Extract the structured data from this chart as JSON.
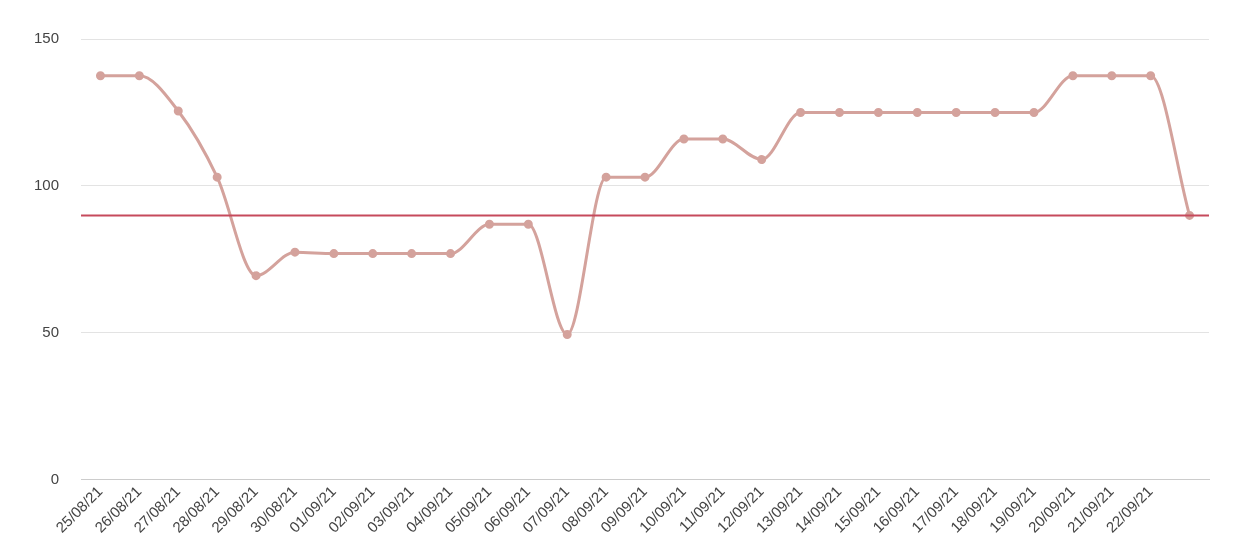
{
  "chart_data": {
    "type": "line",
    "categories": [
      "25/08/21",
      "26/08/21",
      "27/08/21",
      "28/08/21",
      "29/08/21",
      "30/08/21",
      "01/09/21",
      "02/09/21",
      "03/09/21",
      "04/09/21",
      "05/09/21",
      "06/09/21",
      "07/09/21",
      "08/09/21",
      "09/09/21",
      "10/09/21",
      "11/09/21",
      "12/09/21",
      "13/09/21",
      "14/09/21",
      "15/09/21",
      "16/09/21",
      "17/09/21",
      "18/09/21",
      "19/09/21",
      "20/09/21",
      "21/09/21",
      "22/09/21",
      null
    ],
    "series": [
      {
        "color": "#d4a29c",
        "values": [
          137.5,
          137.5,
          125.5,
          103,
          69.5,
          77.5,
          77,
          77,
          77,
          77,
          87,
          87,
          49.5,
          103,
          103,
          116,
          116,
          109,
          125,
          125,
          125,
          125,
          125,
          125,
          125,
          137.5,
          137.5,
          137.5,
          90
        ]
      }
    ],
    "ylim": [
      0,
      150
    ],
    "yticks": [
      0,
      50,
      100,
      150
    ],
    "grid": "y",
    "marker": "circle",
    "line_style": "solid",
    "ref_lines": [
      {
        "axis": "y",
        "value": 90,
        "color": "#c64a5c"
      }
    ]
  }
}
